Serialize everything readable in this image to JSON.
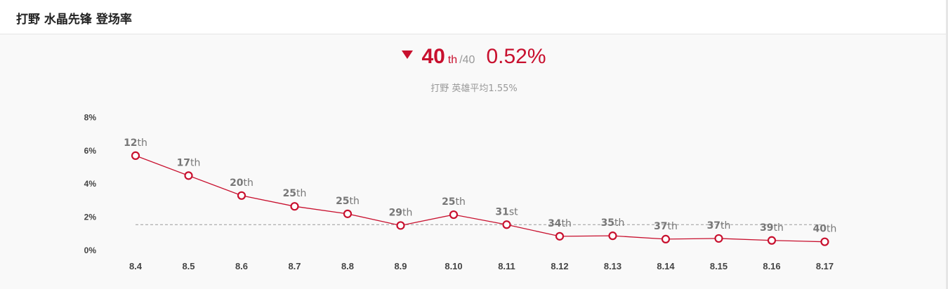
{
  "header": {
    "title": "打野 水晶先锋 登场率"
  },
  "summary": {
    "rank": "40",
    "rank_suffix": "th",
    "rank_total": "/40",
    "rate": "0.52%",
    "trend_icon": "down-triangle-icon",
    "average_text": "打野 英雄平均1.55%"
  },
  "colors": {
    "accent": "#c8102e",
    "average_line": "#999999"
  },
  "chart_data": {
    "type": "line",
    "title": "",
    "xlabel": "",
    "ylabel": "",
    "categories": [
      "8.4",
      "8.5",
      "8.6",
      "8.7",
      "8.8",
      "8.9",
      "8.10",
      "8.11",
      "8.12",
      "8.13",
      "8.14",
      "8.15",
      "8.16",
      "8.17"
    ],
    "series": [
      {
        "values": [
          5.7,
          4.5,
          3.3,
          2.65,
          2.2,
          1.5,
          2.15,
          1.55,
          0.85,
          0.88,
          0.68,
          0.72,
          0.6,
          0.52
        ],
        "labels": [
          "12th",
          "17th",
          "20th",
          "25th",
          "25th",
          "29th",
          "25th",
          "31st",
          "34th",
          "35th",
          "37th",
          "37th",
          "39th",
          "40th"
        ]
      }
    ],
    "average": 1.55,
    "ylim": [
      0,
      8
    ],
    "yticks": [
      0,
      2,
      4,
      6,
      8
    ],
    "ytick_labels": [
      "0%",
      "2%",
      "4%",
      "6%",
      "8%"
    ],
    "grid": false,
    "legend": "none"
  }
}
